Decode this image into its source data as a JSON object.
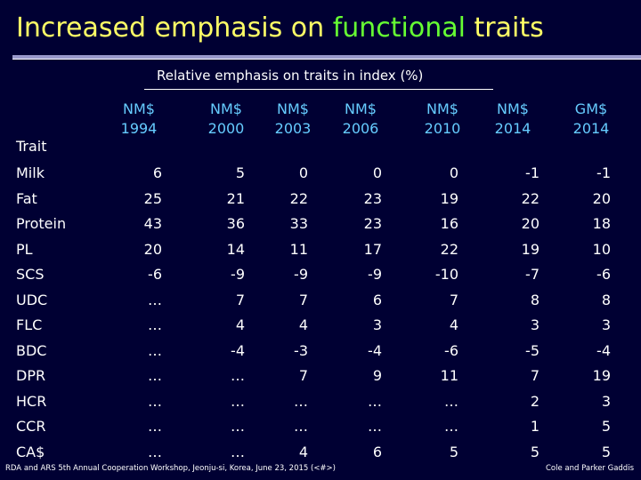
{
  "slide": {
    "title_pre": "Increased emphasis on ",
    "title_highlight": "functional",
    "title_post": " traits",
    "subtitle": "Relative emphasis on traits in index (%)",
    "trait_header": "Trait",
    "footer_left": "RDA and ARS 5th Annual Cooperation Workshop, Jeonju-si, Korea, June 23, 2015 (<#>)",
    "footer_right": "Cole and Parker Gaddis"
  },
  "table": {
    "columns": [
      {
        "name": "NM$",
        "year": "1994"
      },
      {
        "name": "NM$",
        "year": "2000"
      },
      {
        "name": "NM$",
        "year": "2003"
      },
      {
        "name": "NM$",
        "year": "2006"
      },
      {
        "name": "NM$",
        "year": "2010"
      },
      {
        "name": "NM$",
        "year": "2014"
      },
      {
        "name": "GM$",
        "year": "2014"
      }
    ],
    "rows": [
      {
        "trait": "Milk",
        "values": [
          "6",
          "5",
          "0",
          "0",
          "0",
          "-1",
          "-1"
        ]
      },
      {
        "trait": "Fat",
        "values": [
          "25",
          "21",
          "22",
          "23",
          "19",
          "22",
          "20"
        ]
      },
      {
        "trait": "Protein",
        "values": [
          "43",
          "36",
          "33",
          "23",
          "16",
          "20",
          "18"
        ]
      },
      {
        "trait": "PL",
        "values": [
          "20",
          "14",
          "11",
          "17",
          "22",
          "19",
          "10"
        ]
      },
      {
        "trait": "SCS",
        "values": [
          "-6",
          "-9",
          "-9",
          "-9",
          "-10",
          "-7",
          "-6"
        ]
      },
      {
        "trait": "UDC",
        "values": [
          "…",
          "7",
          "7",
          "6",
          "7",
          "8",
          "8"
        ]
      },
      {
        "trait": "FLC",
        "values": [
          "…",
          "4",
          "4",
          "3",
          "4",
          "3",
          "3"
        ]
      },
      {
        "trait": "BDC",
        "values": [
          "…",
          "-4",
          "-3",
          "-4",
          "-6",
          "-5",
          "-4"
        ]
      },
      {
        "trait": "DPR",
        "values": [
          "…",
          "…",
          "7",
          "9",
          "11",
          "7",
          "19"
        ]
      },
      {
        "trait": "HCR",
        "values": [
          "…",
          "…",
          "…",
          "…",
          "…",
          "2",
          "3"
        ]
      },
      {
        "trait": "CCR",
        "values": [
          "…",
          "…",
          "…",
          "…",
          "…",
          "1",
          "5"
        ]
      },
      {
        "trait": "CA$",
        "values": [
          "…",
          "…",
          "4",
          "6",
          "5",
          "5",
          "5"
        ]
      }
    ]
  }
}
